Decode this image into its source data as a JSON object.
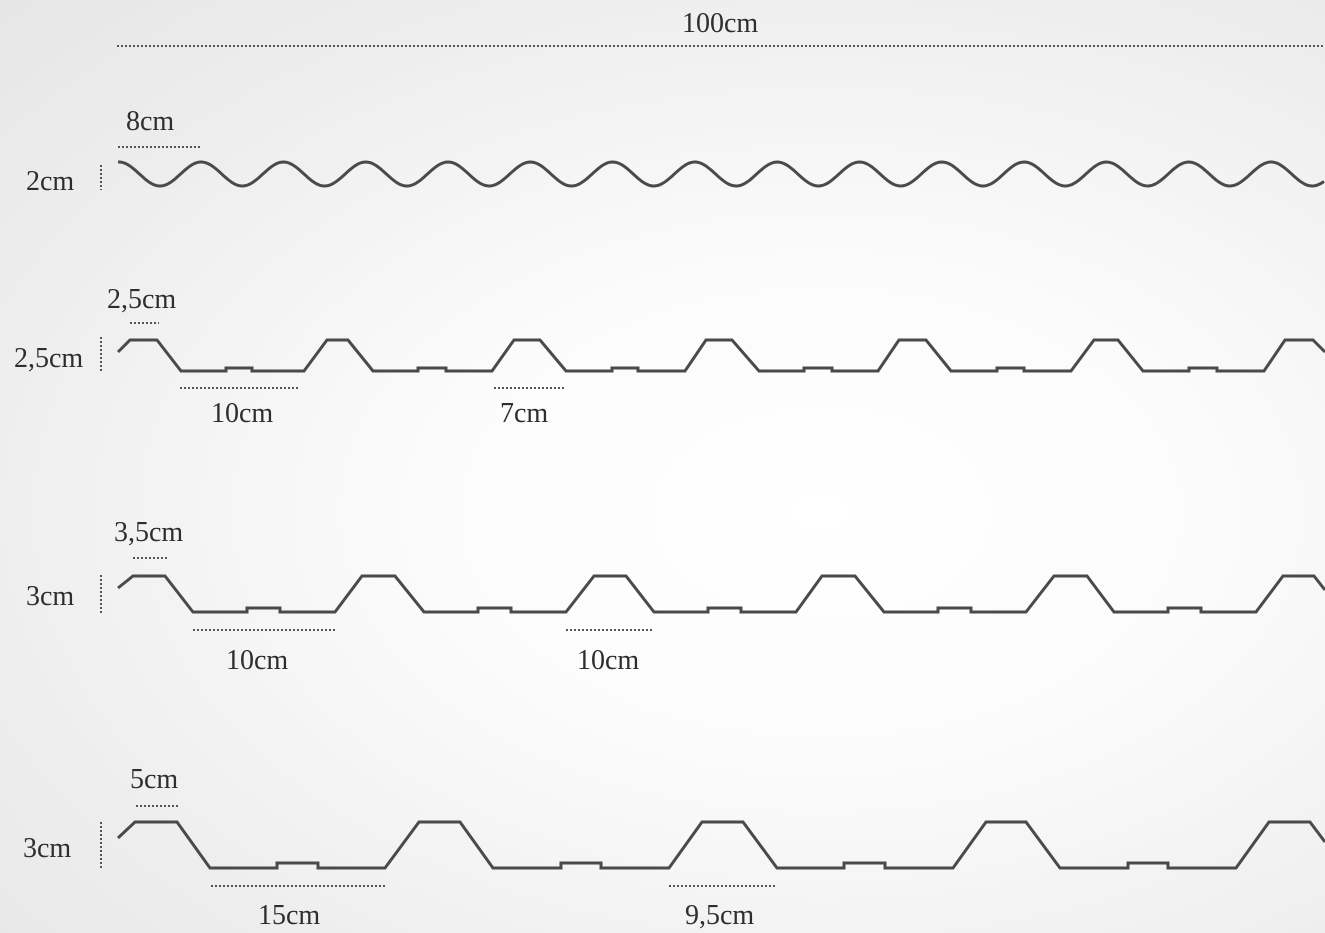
{
  "total_width_label": "100cm",
  "profiles": [
    {
      "name": "wave",
      "height_label": "2cm",
      "pitch_label": "8cm"
    },
    {
      "name": "trapezoid-1",
      "height_label": "2,5cm",
      "top_label": "2,5cm",
      "valley_label": "10cm",
      "pitch_label": "7cm"
    },
    {
      "name": "trapezoid-2",
      "height_label": "3cm",
      "top_label": "3,5cm",
      "valley_label": "10cm",
      "pitch_label": "10cm"
    },
    {
      "name": "trapezoid-3",
      "height_label": "3cm",
      "top_label": "5cm",
      "valley_label": "15cm",
      "pitch_label": "9,5cm"
    }
  ],
  "colors": {
    "line": "#4a4a4a",
    "dots": "#555555",
    "background": "#f4f4f4"
  }
}
